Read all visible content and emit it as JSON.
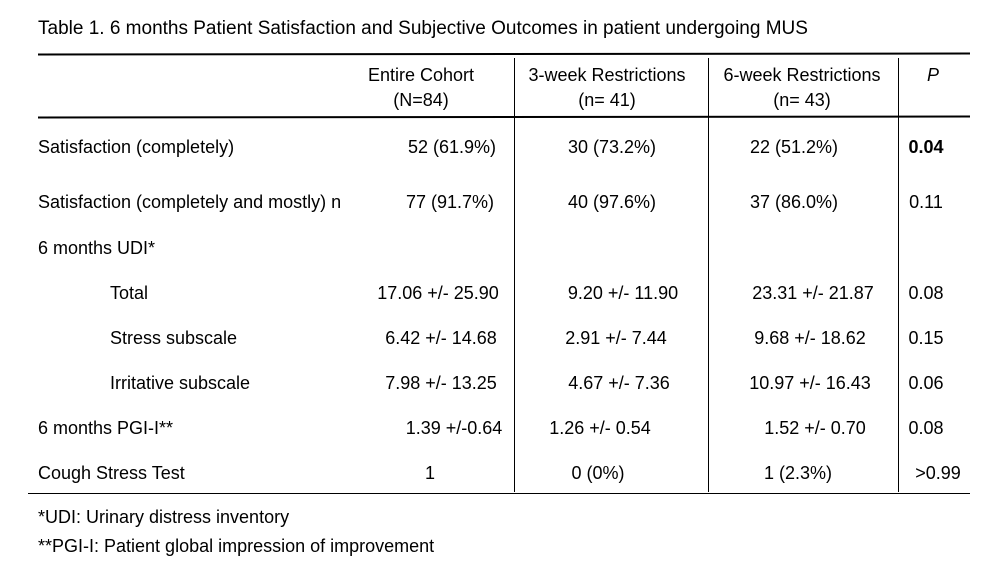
{
  "title": "Table 1.  6 months Patient Satisfaction and Subjective Outcomes in patient undergoing MUS",
  "headers": {
    "entire": {
      "line1": "Entire Cohort",
      "line2": "(N=84)"
    },
    "three_week": {
      "line1": "3-week Restrictions",
      "line2": "(n= 41)"
    },
    "six_week": {
      "line1": "6-week Restrictions",
      "line2": "(n=  43)"
    },
    "p": "P"
  },
  "rows": [
    {
      "label": "Satisfaction (completely)",
      "entire": "52   (61.9%)",
      "three_week": "30  (73.2%)",
      "six_week": "22 (51.2%)",
      "p": "0.04",
      "p_bold": true
    },
    {
      "label": "Satisfaction (completely and mostly) n",
      "entire": "77  (91.7%)",
      "three_week": "40  (97.6%)",
      "six_week": "37 (86.0%)",
      "p": "0.11"
    },
    {
      "label": "6 months UDI*",
      "entire": "",
      "three_week": "",
      "six_week": "",
      "p": ""
    },
    {
      "label": "Total",
      "entire": "17.06 +/- 25.90",
      "three_week": "9.20 +/- 11.90",
      "six_week": "23.31 +/- 21.87",
      "p": "0.08"
    },
    {
      "label": "Stress subscale",
      "entire": "6.42 +/- 14.68",
      "three_week": "2.91 +/- 7.44",
      "six_week": "9.68 +/- 18.62",
      "p": "0.15"
    },
    {
      "label": "Irritative subscale",
      "entire": "7.98 +/- 13.25",
      "three_week": "4.67 +/- 7.36",
      "six_week": "10.97 +/- 16.43",
      "p": "0.06"
    },
    {
      "label": "6 months PGI-I**",
      "entire": "1.39 +/-0.64",
      "three_week": "1.26 +/- 0.54",
      "six_week": "1.52 +/- 0.70",
      "p": "0.08"
    },
    {
      "label": "Cough Stress Test",
      "entire": "1",
      "three_week": "0 (0%)",
      "six_week": "1 (2.3%)",
      "p": ">0.99"
    }
  ],
  "footnotes": [
    "*UDI: Urinary distress inventory",
    "**PGI-I: Patient global impression of improvement"
  ]
}
